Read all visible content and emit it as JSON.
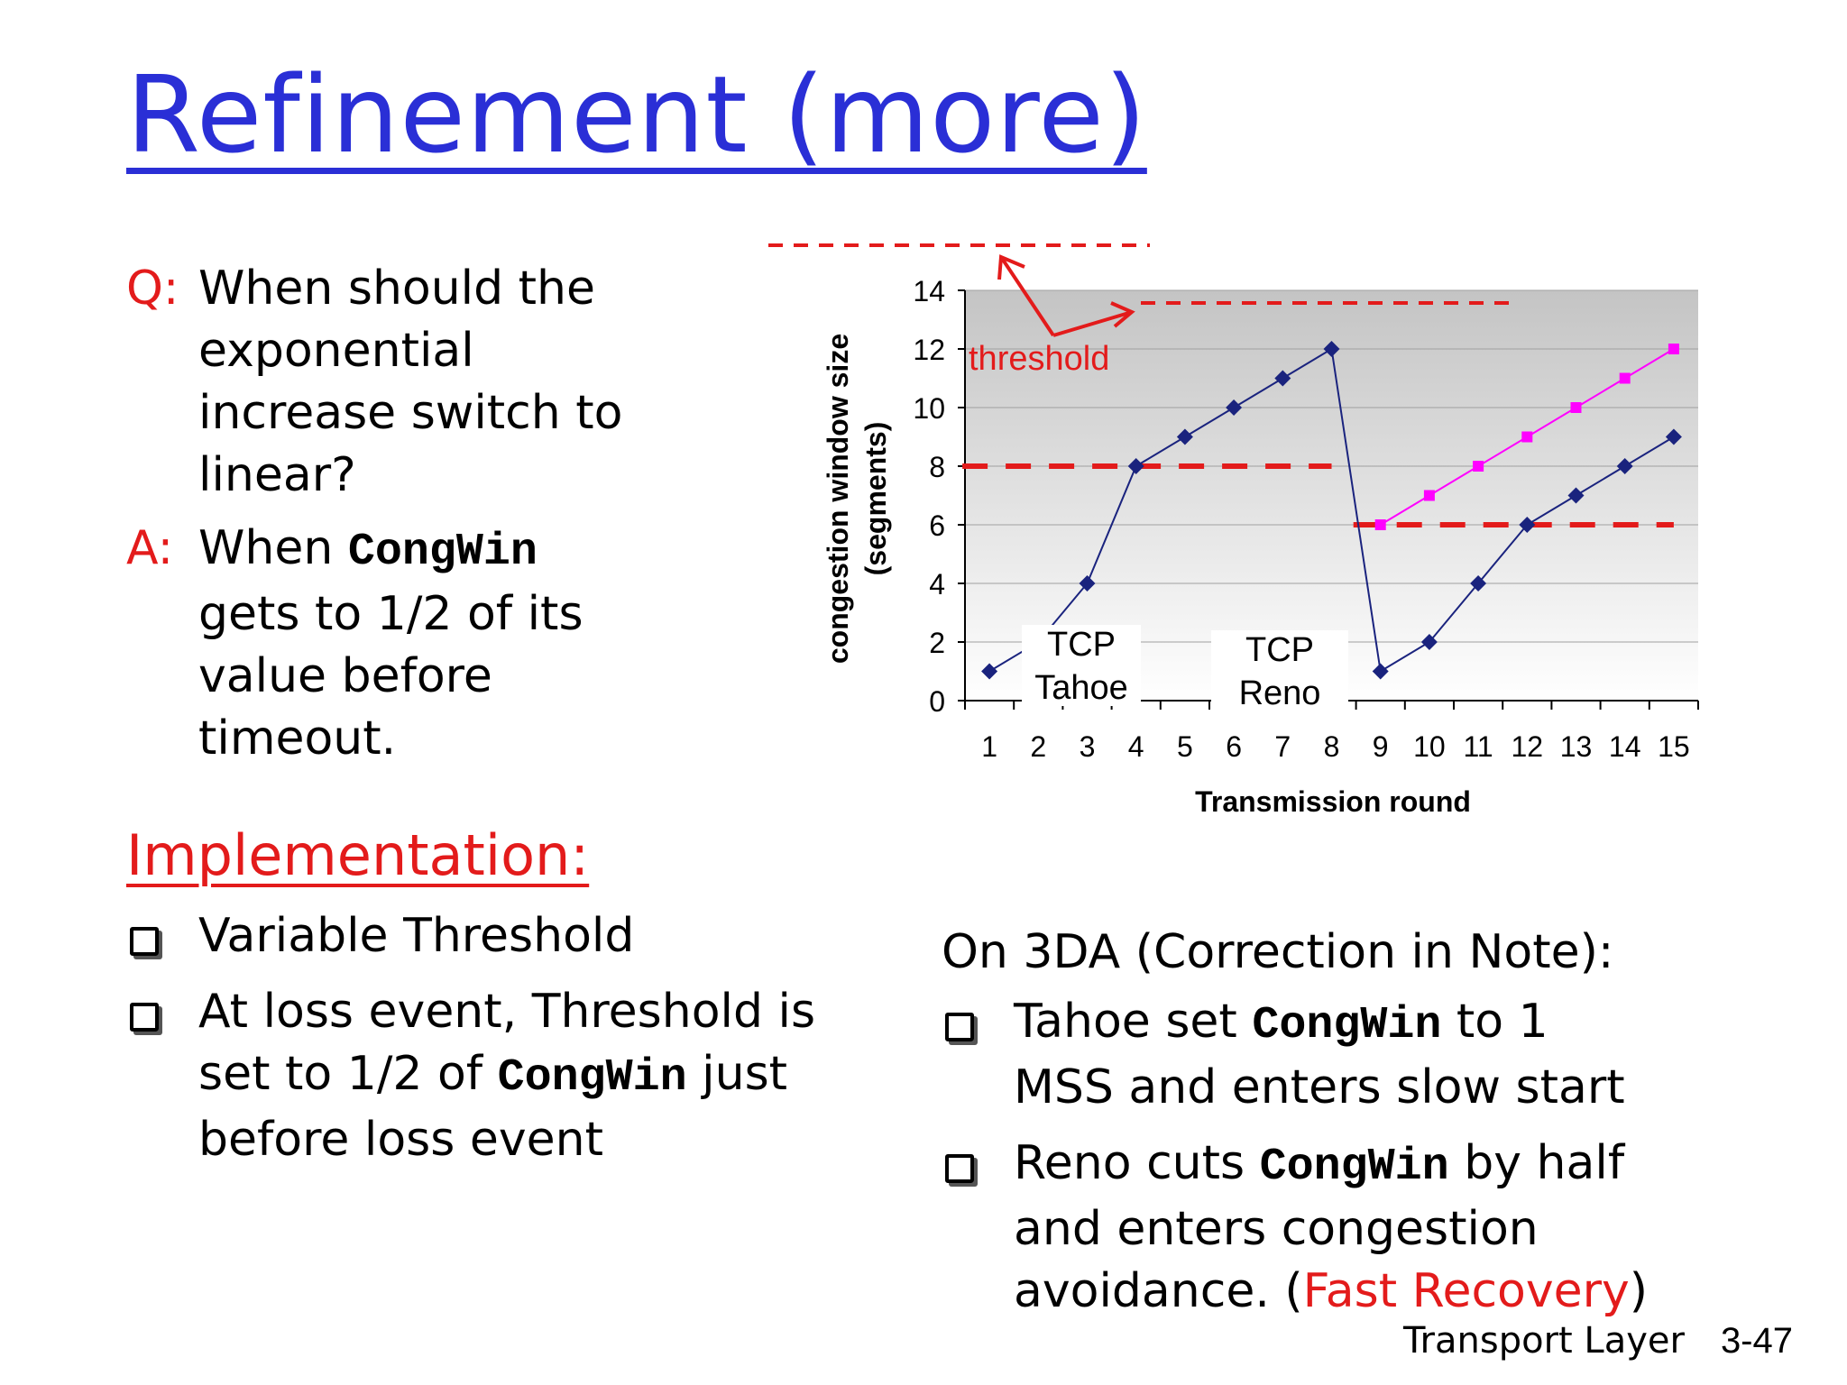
{
  "title": "Refinement (more)",
  "qa": {
    "q_label": "Q:",
    "q_lines": [
      "When should the",
      "exponential",
      "increase switch to",
      "linear?"
    ],
    "a_label": "A:",
    "a_line1_pre": "When ",
    "a_line1_code": "CongWin",
    "a_lines": [
      "gets to 1/2 of its",
      "value before",
      "timeout."
    ]
  },
  "implementation": {
    "heading": "Implementation:",
    "b1": "Variable Threshold",
    "b2_l1": "At loss event, Threshold is",
    "b2_l2_pre": "set to 1/2 of ",
    "b2_l2_code": "CongWin",
    "b2_l2_post": " just",
    "b2_l3": "before loss event"
  },
  "note": {
    "heading": "On 3DA (Correction in Note):",
    "b1_l1_pre": "Tahoe set ",
    "b1_l1_code": "CongWin",
    "b1_l1_post": " to 1",
    "b1_l2": "MSS and enters slow start",
    "b2_l1_pre": "Reno cuts ",
    "b2_l1_code": "CongWin",
    "b2_l1_post": " by half",
    "b2_l2": "and enters congestion",
    "b2_l3_pre": "avoidance. (",
    "b2_l3_red": "Fast Recovery",
    "b2_l3_post": ")"
  },
  "footer": {
    "label": "Transport Layer",
    "page": "3-47"
  },
  "colors": {
    "title": "#2a2fd6",
    "accent_red": "#e31b1b",
    "series_blue": "#1a237e",
    "series_magenta": "#ff00ff"
  },
  "chart_data": {
    "type": "line",
    "xlabel": "Transmission round",
    "ylabel_line1": "congestion window size",
    "ylabel_line2": "(segments)",
    "ylim": [
      0,
      14
    ],
    "yticks": [
      0,
      2,
      4,
      6,
      8,
      10,
      12,
      14
    ],
    "x": [
      1,
      2,
      3,
      4,
      5,
      6,
      7,
      8,
      9,
      10,
      11,
      12,
      13,
      14,
      15
    ],
    "series": [
      {
        "x": [
          1,
          2,
          3,
          4,
          5,
          6,
          7,
          8,
          9,
          10,
          11,
          12,
          13,
          14,
          15
        ],
        "values": [
          1,
          2,
          4,
          8,
          9,
          10,
          11,
          12,
          1,
          2,
          4,
          6,
          7,
          8,
          9
        ]
      },
      {
        "x": [
          9,
          10,
          11,
          12,
          13,
          14,
          15
        ],
        "values": [
          6,
          7,
          8,
          9,
          10,
          11,
          12
        ]
      }
    ],
    "thresholds": [
      {
        "from": 1,
        "to": 8,
        "y": 8
      },
      {
        "from": 9,
        "to": 15,
        "y": 6
      }
    ],
    "annotations": {
      "threshold_label": "threshold",
      "tahoe_line1": "TCP",
      "tahoe_line2": "Tahoe",
      "reno_line1": "TCP",
      "reno_line2": "Reno"
    }
  }
}
